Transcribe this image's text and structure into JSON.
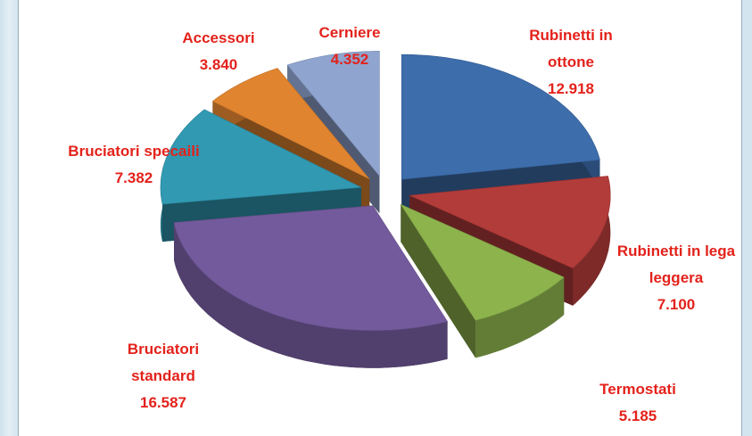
{
  "chart_data": {
    "type": "pie",
    "categories": [
      "Rubinetti in ottone",
      "Rubinetti in lega leggera",
      "Termostati",
      "Bruciatori standard",
      "Bruciatori specaili",
      "Accessori",
      "Cerniere"
    ],
    "values": [
      12918,
      7100,
      5185,
      16587,
      7382,
      3840,
      4352
    ],
    "value_labels": [
      "12.918",
      "7.100",
      "5.185",
      "16.587",
      "7.382",
      "3.840",
      "4.352"
    ],
    "colors": [
      "#3d6dab",
      "#b23c3a",
      "#8db34d",
      "#735a9c",
      "#3199b2",
      "#e0842f",
      "#8fa4cf"
    ]
  }
}
